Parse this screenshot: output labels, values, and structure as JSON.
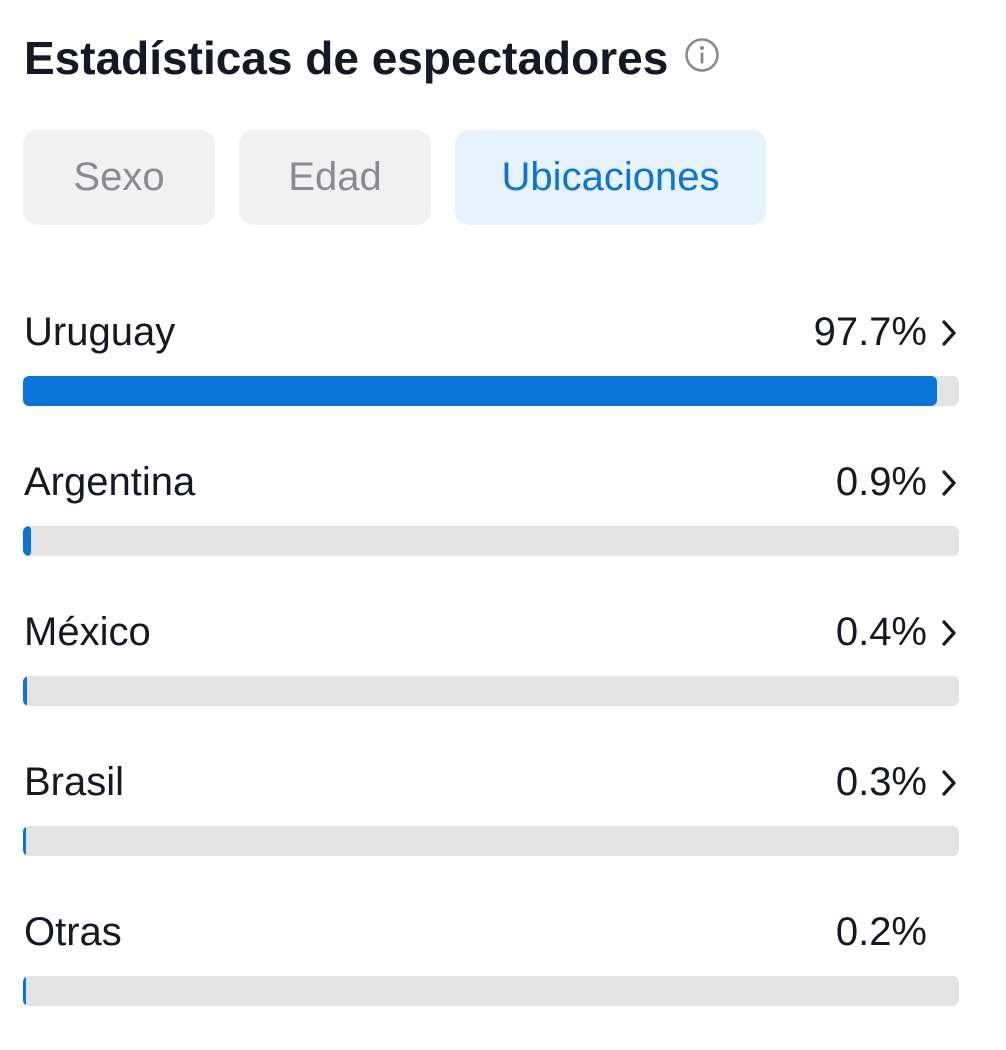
{
  "header": {
    "title": "Estadísticas de espectadores",
    "info_icon": "info-circle-icon"
  },
  "tabs": [
    {
      "label": "Sexo",
      "active": false
    },
    {
      "label": "Edad",
      "active": false
    },
    {
      "label": "Ubicaciones",
      "active": true
    }
  ],
  "locations": [
    {
      "name": "Uruguay",
      "percent_label": "97.7%",
      "percent": 97.7,
      "has_chevron": true
    },
    {
      "name": "Argentina",
      "percent_label": "0.9%",
      "percent": 0.9,
      "has_chevron": true
    },
    {
      "name": "México",
      "percent_label": "0.4%",
      "percent": 0.4,
      "has_chevron": true
    },
    {
      "name": "Brasil",
      "percent_label": "0.3%",
      "percent": 0.3,
      "has_chevron": true
    },
    {
      "name": "Otras",
      "percent_label": "0.2%",
      "percent": 0.2,
      "has_chevron": false
    }
  ],
  "colors": {
    "accent": "#0a74da",
    "active_tab_bg": "#e6f2fc",
    "inactive_tab_bg": "#f1f1f2",
    "inactive_tab_text": "#8a8b91",
    "bar_track": "#e3e3e4",
    "text": "#161823"
  }
}
